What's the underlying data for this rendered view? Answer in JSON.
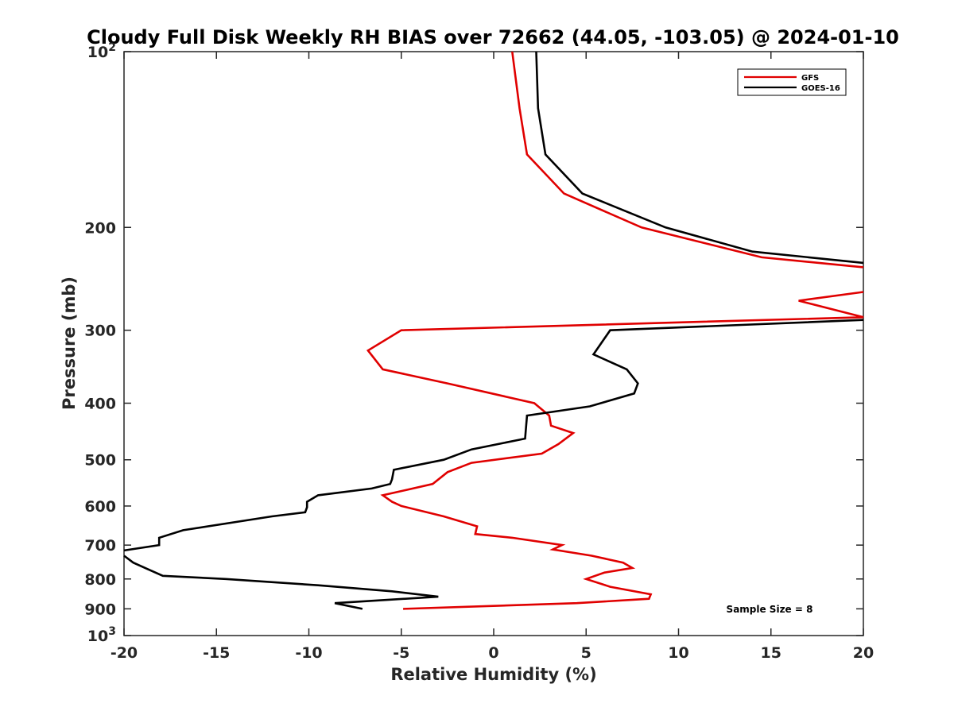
{
  "chart_data": {
    "type": "line",
    "title": "Cloudy Full Disk Weekly RH BIAS over 72662 (44.05, -103.05) @ 2024-01-10",
    "xlabel": "Relative Humidity (%)",
    "ylabel": "Pressure (mb)",
    "xlim": [
      -20,
      20
    ],
    "ylim": [
      100,
      1000
    ],
    "y_scale": "log",
    "y_reversed": true,
    "grid": false,
    "legend_position": "top-right",
    "x_ticks": [
      "-20",
      "-15",
      "-10",
      "-5",
      "0",
      "5",
      "10",
      "15",
      "20"
    ],
    "y_ticks": [
      {
        "value": 100,
        "base": "10",
        "exp": "2"
      },
      {
        "value": 200,
        "label": "200"
      },
      {
        "value": 300,
        "label": "300"
      },
      {
        "value": 400,
        "label": "400"
      },
      {
        "value": 500,
        "label": "500"
      },
      {
        "value": 600,
        "label": "600"
      },
      {
        "value": 700,
        "label": "700"
      },
      {
        "value": 800,
        "label": "800"
      },
      {
        "value": 900,
        "label": "900"
      },
      {
        "value": 1000,
        "base": "10",
        "exp": "3"
      }
    ],
    "annotation": "Sample Size = 8",
    "series": [
      {
        "name": "GFS",
        "color": "#e00000",
        "segments": [
          [
            [
              1.0,
              100
            ],
            [
              1.4,
              125
            ],
            [
              1.8,
              150
            ],
            [
              3.8,
              175
            ],
            [
              8.0,
              200
            ],
            [
              14.5,
              225
            ],
            [
              20.0,
              234
            ]
          ],
          [
            [
              20.0,
              258
            ],
            [
              16.5,
              267
            ],
            [
              20.0,
              285
            ],
            [
              -5.0,
              300
            ],
            [
              -6.8,
              325
            ],
            [
              -6.0,
              350
            ],
            [
              -2.5,
              370
            ],
            [
              2.2,
              400
            ],
            [
              3.0,
              420
            ],
            [
              3.1,
              437
            ],
            [
              4.3,
              450
            ],
            [
              3.5,
              470
            ],
            [
              2.6,
              488
            ],
            [
              -1.2,
              506
            ],
            [
              -2.5,
              525
            ],
            [
              -3.3,
              550
            ],
            [
              -6.0,
              575
            ],
            [
              -5.5,
              590
            ],
            [
              -5.0,
              600
            ],
            [
              -2.7,
              625
            ],
            [
              -0.9,
              650
            ],
            [
              -1.0,
              670
            ],
            [
              1.0,
              680
            ],
            [
              3.7,
              700
            ],
            [
              3.2,
              712
            ],
            [
              5.3,
              730
            ],
            [
              7.0,
              750
            ],
            [
              7.5,
              766
            ],
            [
              6.0,
              780
            ],
            [
              5.0,
              800
            ],
            [
              6.3,
              825
            ],
            [
              8.5,
              850
            ],
            [
              8.4,
              865
            ],
            [
              4.5,
              880
            ],
            [
              -4.9,
              900
            ]
          ]
        ]
      },
      {
        "name": "GOES-16",
        "color": "#000000",
        "segments": [
          [
            [
              2.3,
              100
            ],
            [
              2.4,
              125
            ],
            [
              2.8,
              150
            ],
            [
              4.8,
              175
            ],
            [
              9.3,
              200
            ],
            [
              14.0,
              220
            ],
            [
              20.0,
              230
            ]
          ],
          [
            [
              20.0,
              288
            ],
            [
              6.3,
              300
            ],
            [
              5.4,
              330
            ],
            [
              7.2,
              350
            ],
            [
              7.8,
              370
            ],
            [
              7.6,
              385
            ],
            [
              5.2,
              405
            ],
            [
              1.8,
              420
            ],
            [
              1.7,
              460
            ],
            [
              -1.2,
              480
            ],
            [
              -2.7,
              500
            ],
            [
              -5.4,
              520
            ],
            [
              -5.5,
              540
            ],
            [
              -5.6,
              550
            ],
            [
              -6.6,
              560
            ],
            [
              -9.5,
              575
            ],
            [
              -10.1,
              590
            ],
            [
              -10.1,
              603
            ],
            [
              -10.2,
              615
            ],
            [
              -12.0,
              625
            ],
            [
              -16.8,
              660
            ],
            [
              -18.1,
              680
            ],
            [
              -18.1,
              700
            ],
            [
              -20.0,
              715
            ]
          ],
          [
            [
              -20.0,
              730
            ],
            [
              -19.5,
              750
            ],
            [
              -18.7,
              770
            ],
            [
              -17.9,
              790
            ],
            [
              -14.5,
              800
            ],
            [
              -9.5,
              820
            ],
            [
              -5.5,
              840
            ],
            [
              -3.0,
              858
            ],
            [
              -8.6,
              880
            ],
            [
              -7.1,
              900
            ]
          ]
        ]
      }
    ]
  }
}
